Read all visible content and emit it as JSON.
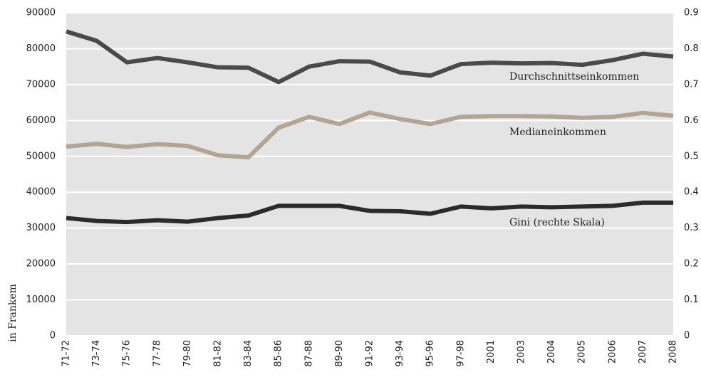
{
  "chart_data": {
    "type": "line",
    "y_label": "in Frankem",
    "categories": [
      "71-72",
      "73-74",
      "75-76",
      "77-78",
      "79-80",
      "81-82",
      "83-84",
      "85-86",
      "87-88",
      "89-90",
      "91-92",
      "93-94",
      "95-96",
      "97-98",
      "2001",
      "2003",
      "2004",
      "2005",
      "2006",
      "2007",
      "2008"
    ],
    "series": [
      {
        "name": "Durchschnittseinkommen",
        "color": "#4a4a4a",
        "values": [
          84800,
          82200,
          76200,
          77400,
          76200,
          74800,
          74700,
          70700,
          75000,
          76500,
          76400,
          73400,
          72500,
          75700,
          76100,
          75900,
          76000,
          75500,
          76800,
          78600,
          77800
        ]
      },
      {
        "name": "Medianeinkommen",
        "color": "#b3a595",
        "values": [
          52700,
          53500,
          52600,
          53400,
          52900,
          50300,
          49700,
          58000,
          61000,
          59000,
          62200,
          60400,
          59000,
          61000,
          61200,
          61200,
          61100,
          60700,
          61000,
          62100,
          61300
        ]
      },
      {
        "name": "Gini (rechte Skala)",
        "color": "#2b2b2b",
        "axis": "y2",
        "values": [
          0.328,
          0.32,
          0.317,
          0.322,
          0.318,
          0.328,
          0.335,
          0.362,
          0.362,
          0.362,
          0.348,
          0.347,
          0.34,
          0.36,
          0.355,
          0.36,
          0.358,
          0.36,
          0.362,
          0.371,
          0.371
        ]
      }
    ],
    "ylim": [
      0,
      90000
    ],
    "yticks": [
      0,
      10000,
      20000,
      30000,
      40000,
      50000,
      60000,
      70000,
      80000,
      90000
    ],
    "y2lim": [
      0,
      0.9
    ],
    "y2ticks": [
      0,
      0.1,
      0.2,
      0.3,
      0.4,
      0.5,
      0.6,
      0.7,
      0.8,
      0.9
    ],
    "grid": true
  }
}
